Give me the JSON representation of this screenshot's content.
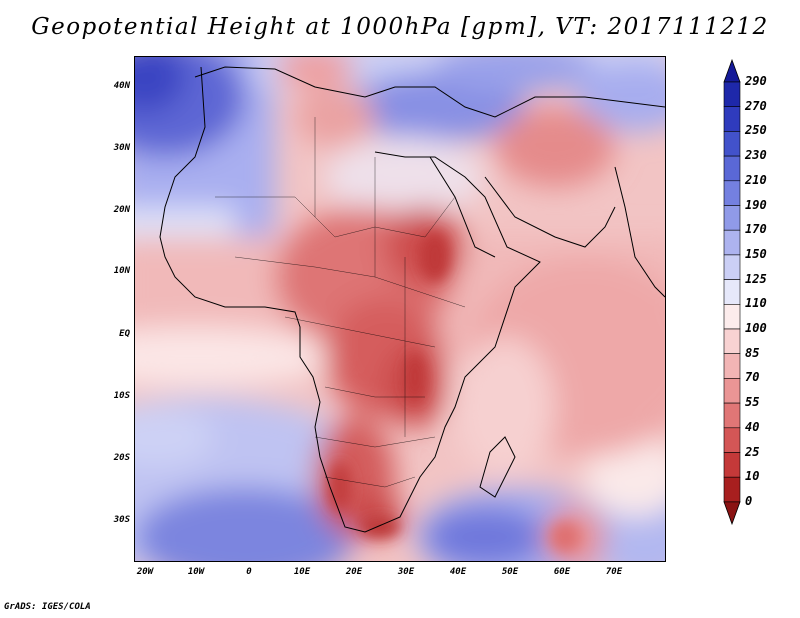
{
  "title": "Geopotential Height at 1000hPa [gpm], VT: 2017111212",
  "credit": "GrADS: IGES/COLA",
  "lat_labels": [
    "40N",
    "30N",
    "20N",
    "10N",
    "EQ",
    "10S",
    "20S",
    "30S"
  ],
  "lon_labels": [
    "20W",
    "10W",
    "0",
    "10E",
    "20E",
    "30E",
    "40E",
    "50E",
    "60E",
    "70E"
  ],
  "colorbar": {
    "labels": [
      "290",
      "270",
      "250",
      "230",
      "210",
      "190",
      "170",
      "150",
      "125",
      "110",
      "100",
      "85",
      "70",
      "55",
      "40",
      "25",
      "10",
      "0"
    ],
    "colors": [
      "#151a98",
      "#1e28aa",
      "#2f3bbd",
      "#4252cb",
      "#5a68d6",
      "#7480e0",
      "#909ae8",
      "#adb3ef",
      "#cbcff5",
      "#e6e8fa",
      "#fcecec",
      "#f8d2d2",
      "#f2b5b5",
      "#ea9595",
      "#e07676",
      "#d45656",
      "#c43939",
      "#a81f1f",
      "#8a1313"
    ]
  },
  "chart_data": {
    "type": "heatmap",
    "title": "Geopotential Height at 1000hPa [gpm], VT: 2017111212",
    "variable": "Geopotential Height",
    "level": "1000hPa",
    "units": "gpm",
    "valid_time": "2017111212",
    "x_range": [
      "20W",
      "80E"
    ],
    "y_range": [
      "36S",
      "45N"
    ],
    "x_ticks": [
      "20W",
      "10W",
      "0",
      "10E",
      "20E",
      "30E",
      "40E",
      "50E",
      "60E",
      "70E"
    ],
    "y_ticks": [
      "40N",
      "30N",
      "20N",
      "10N",
      "EQ",
      "10S",
      "20S",
      "30S"
    ],
    "contour_levels": [
      0,
      10,
      25,
      40,
      55,
      70,
      85,
      100,
      110,
      125,
      150,
      170,
      190,
      210,
      230,
      250,
      270,
      290
    ]
  }
}
